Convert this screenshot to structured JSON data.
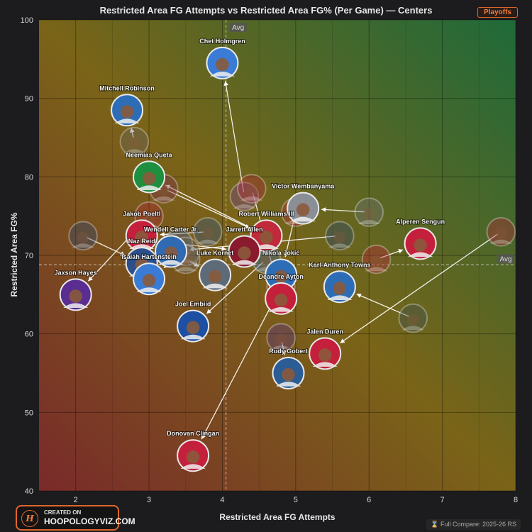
{
  "header": {
    "title": "Restricted Area FG Attempts vs Restricted Area FG% (Per Game) — Centers",
    "badge": "Playoffs"
  },
  "footer": {
    "compare": "⌛ Full Compare: 2025-26 RS"
  },
  "logo": {
    "mark": "H",
    "line1": "CREATED ON",
    "line2": "HOOPOLOGYVIZ.COM"
  },
  "colors": {
    "accent": "#e0662b",
    "arrow": "#ffffff"
  },
  "chart_data": {
    "type": "scatter",
    "title": "Restricted Area FG Attempts vs Restricted Area FG% (Per Game) — Centers",
    "xlabel": "Restricted Area FG Attempts",
    "ylabel": "Restricted Area FG%",
    "xlim": [
      1.5,
      8
    ],
    "ylim": [
      40,
      100
    ],
    "xticks": [
      2,
      3,
      4,
      5,
      6,
      7,
      8
    ],
    "yticks": [
      40,
      50,
      60,
      70,
      80,
      90,
      100
    ],
    "avg": {
      "x": 4.05,
      "y": 68.8,
      "label": "Avg"
    },
    "grid": true,
    "players": [
      {
        "name": "Chet Holmgren",
        "x": 4.0,
        "y": 94.5,
        "color": "#3a7bd5",
        "prev": {
          "x": 4.3,
          "y": 77.5,
          "color": "#7b3fa0"
        }
      },
      {
        "name": "Mitchell Robinson",
        "x": 2.7,
        "y": 88.5,
        "color": "#2d6db5",
        "prev": {
          "x": 2.8,
          "y": 84.5
        }
      },
      {
        "name": "Neemias Queta",
        "x": 3.0,
        "y": 80.0,
        "color": "#1e8f3e",
        "prev": {
          "x": 4.6,
          "y": 72.5,
          "color": "#c02a3a"
        }
      },
      {
        "name": "Victor Wembanyama",
        "x": 5.1,
        "y": 76.0,
        "color": "#8a8f96",
        "prev": {
          "x": 6.0,
          "y": 75.5,
          "color": "#6f7680"
        }
      },
      {
        "name": "Robert Williams III",
        "x": 4.6,
        "y": 72.5,
        "color": "#c02a3a",
        "prev": {
          "x": 3.2,
          "y": 78.5,
          "color": "#7a2a55"
        }
      },
      {
        "name": "Jakob Poeltl",
        "x": 2.9,
        "y": 72.5,
        "color": "#c4203b",
        "prev": {
          "x": 3.8,
          "y": 73.0,
          "color": "#2b5c94"
        }
      },
      {
        "name": "Alperen Sengun",
        "x": 6.7,
        "y": 71.5,
        "color": "#c4203b",
        "prev": {
          "x": 6.1,
          "y": 69.5,
          "color": "#c4203b"
        }
      },
      {
        "name": "Jarrett Allen",
        "x": 4.3,
        "y": 70.5,
        "color": "#8a1a2e",
        "prev": {
          "x": 3.4,
          "y": 71.5,
          "color": "#4a6aa0"
        }
      },
      {
        "name": "Wendell Carter Jr.",
        "x": 3.3,
        "y": 70.5,
        "color": "#2f6ab3",
        "prev": {
          "x": 5.6,
          "y": 72.5,
          "color": "#25477a"
        }
      },
      {
        "name": "Naz Reid",
        "x": 2.9,
        "y": 69.0,
        "color": "#2a4f8a",
        "prev": {
          "x": 2.1,
          "y": 72.5,
          "color": "#25477a"
        }
      },
      {
        "name": "Isaiah Hartenstein",
        "x": 3.0,
        "y": 67.0,
        "color": "#3a7bd5",
        "prev": {
          "x": 3.5,
          "y": 70.5
        }
      },
      {
        "name": "Luke Kornet",
        "x": 3.9,
        "y": 67.5,
        "color": "#5d6b78",
        "prev": {
          "x": 3.5,
          "y": 69.5
        }
      },
      {
        "name": "Karl-Anthony Towns",
        "x": 5.6,
        "y": 66.0,
        "color": "#2d6db5",
        "prev": {
          "x": 6.6,
          "y": 62.0,
          "color": "#3c4f5c"
        }
      },
      {
        "name": "Nikola Jokić",
        "x": 4.8,
        "y": 67.5,
        "color": "#2d6db5",
        "prev": {
          "x": 5.0,
          "y": 75.5,
          "color": "#b5253a"
        }
      },
      {
        "name": "Jaxson Hayes",
        "x": 2.0,
        "y": 65.0,
        "color": "#5a2d91",
        "prev": {
          "x": 3.0,
          "y": 75.0,
          "color": "#b5253a"
        }
      },
      {
        "name": "Joel Embiid",
        "x": 3.6,
        "y": 61.0,
        "color": "#1d4fa3",
        "prev": {
          "x": 4.6,
          "y": 69.5,
          "color": "#2d6db5"
        }
      },
      {
        "name": "Deandre Ayton",
        "x": 4.8,
        "y": 64.5,
        "color": "#c4203b",
        "prev": {
          "x": 4.4,
          "y": 78.5,
          "color": "#b5253a"
        }
      },
      {
        "name": "Jalen Duren",
        "x": 5.4,
        "y": 57.5,
        "color": "#c4203b",
        "prev": {
          "x": 7.8,
          "y": 73.0,
          "color": "#c4203b"
        }
      },
      {
        "name": "Rudy Gobert",
        "x": 4.9,
        "y": 55.0,
        "color": "#2b5c94",
        "prev": {
          "x": 4.8,
          "y": 59.5,
          "color": "#5a2d91"
        }
      },
      {
        "name": "Donovan Clingan",
        "x": 3.6,
        "y": 44.5,
        "color": "#c4203b",
        "prev": {
          "x": 4.8,
          "y": 66.0,
          "color": "#c4203b"
        }
      }
    ]
  }
}
